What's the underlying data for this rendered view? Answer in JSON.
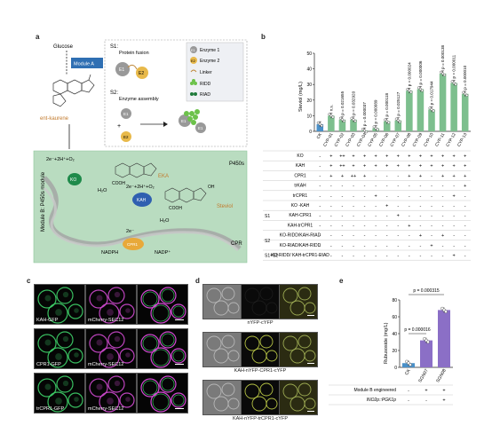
{
  "panel_a": {
    "label": "a",
    "glucose": "Glucose",
    "module_a": "Module A",
    "ent_kaurene": "ent-kaurene",
    "s1": "S1:",
    "protein_fusion": "Protein fusion",
    "s2": "S2:",
    "enzyme_assembly": "Enzyme assembly",
    "legend": [
      {
        "key": "E1",
        "text": "Enzyme 1"
      },
      {
        "key": "E2",
        "text": "Enzyme 2"
      },
      {
        "key": "",
        "text": "Linker"
      },
      {
        "key": "",
        "text": "RIDD"
      },
      {
        "key": "",
        "text": "RIAD"
      }
    ],
    "e1": "E1",
    "e2": "E2",
    "plus": "+",
    "module_b": "Module B: P450s module",
    "p450s": "P450s",
    "reaction1": "2e⁻+2H⁺+O₂",
    "reaction2": "2e⁻+2H⁺+O₂",
    "eka": "EKA",
    "steviol": "Steviol",
    "ko": "KO",
    "kah": "KAH",
    "cpr": "CPR",
    "h2o_1": "H₂O",
    "h2o_2": "H₂O",
    "electron": "2e⁻",
    "nadph": "NADPH",
    "nadp": "NADP⁺",
    "cpr1": "CPR1",
    "oh": "OH",
    "cooh1": "COOH",
    "cooh2": "COOH"
  },
  "panel_b": {
    "label": "b",
    "chart_data": {
      "type": "bar",
      "ylabel": "Steviol (mg/L)",
      "ylim": [
        0,
        50
      ],
      "yticks": [
        0,
        10,
        20,
        30,
        40,
        50
      ],
      "categories": [
        "CK",
        "CYP-01",
        "CYP-02",
        "CYP-03",
        "CYP-04",
        "CYP-05",
        "CYP-06",
        "CYP-07",
        "CYP-08",
        "CYP-09",
        "CYP-10",
        "CYP-11",
        "CYP-12",
        "CYP-13"
      ],
      "values": [
        4.5,
        10,
        7.5,
        7.5,
        0.5,
        2,
        6.5,
        7,
        26,
        27,
        14,
        37,
        31,
        24
      ],
      "annotations": [
        "",
        "n.s.",
        "p = 0.021655",
        "p = 0.032920",
        "p = 0.000037",
        "p = 0.000089",
        "p = 0.000118",
        "p = 0.025127",
        "p = 0.000024",
        "p = 0.000006",
        "p = 0.017944",
        "p = 0.000138",
        "p = 0.000011",
        "p = 0.000010"
      ],
      "colors": {
        "ck": "#4a90c8",
        "sample": "#7dbf8e"
      }
    },
    "table_rows": [
      {
        "group": "",
        "name": "KO",
        "cells": [
          "-",
          "+",
          "++",
          "+",
          "+",
          "+",
          "+",
          "+",
          "+",
          "+",
          "+",
          "+",
          "+",
          "+"
        ]
      },
      {
        "group": "",
        "name": "KAH",
        "cells": [
          "-",
          "+",
          "++",
          "+",
          "+",
          "+",
          "+",
          "+",
          "+",
          "+",
          "+",
          "+",
          "+",
          "+"
        ]
      },
      {
        "group": "",
        "name": "CPR1",
        "cells": [
          "-",
          "+",
          "+",
          "++",
          "+",
          "-",
          "-",
          "-",
          "+",
          "+",
          "-",
          "+",
          "+",
          "+"
        ]
      },
      {
        "group": "",
        "name": "trKAH",
        "cells": [
          "-",
          "-",
          "-",
          "-",
          "-",
          "-",
          "-",
          "-",
          "-",
          "-",
          "-",
          "-",
          "-",
          "+"
        ]
      },
      {
        "group": "",
        "name": "trCPR1",
        "cells": [
          "-",
          "-",
          "-",
          "-",
          "-",
          "+",
          "-",
          "-",
          "-",
          "-",
          "-",
          "-",
          "+",
          "-"
        ]
      },
      {
        "group": "S1",
        "name": "KO -KAH",
        "cells": [
          "-",
          "-",
          "-",
          "-",
          "-",
          "-",
          "+",
          "-",
          "-",
          "-",
          "-",
          "-",
          "-",
          "-"
        ]
      },
      {
        "group": "S1",
        "name": "KAH-CPR1",
        "cells": [
          "-",
          "-",
          "-",
          "-",
          "-",
          "-",
          "-",
          "+",
          "-",
          "-",
          "-",
          "-",
          "-",
          "-"
        ]
      },
      {
        "group": "S1",
        "name": "KAH-trCPR1",
        "cells": [
          "-",
          "-",
          "-",
          "-",
          "-",
          "-",
          "-",
          "-",
          "+",
          "-",
          "-",
          "-",
          "-",
          "-"
        ]
      },
      {
        "group": "S2",
        "name": "KO-RIDD/KAH-RIAD",
        "cells": [
          "-",
          "-",
          "-",
          "-",
          "-",
          "-",
          "-",
          "-",
          "-",
          "+",
          "-",
          "+",
          "-",
          "-"
        ]
      },
      {
        "group": "S2",
        "name": "KO-RIAD/KAH-RIDD",
        "cells": [
          "-",
          "-",
          "-",
          "-",
          "-",
          "-",
          "-",
          "-",
          "-",
          "-",
          "+",
          "-",
          "-",
          "-"
        ]
      },
      {
        "group": "S1+S2",
        "name": "KO-RIDD/ KAH-trCPR1-RIAD",
        "cells": [
          "-",
          "-",
          "-",
          "-",
          "-",
          "-",
          "-",
          "-",
          "-",
          "-",
          "-",
          "-",
          "+",
          "-"
        ]
      }
    ]
  },
  "panel_c": {
    "label": "c",
    "rows": [
      {
        "left": "KAH-GFP",
        "mid": "mCherry-SEC12"
      },
      {
        "left": "CPR1-GFP",
        "mid": "mCherry-SEC12"
      },
      {
        "left": "trCPR1-GFP",
        "mid": "mCherry-SEC12"
      }
    ]
  },
  "panel_d": {
    "label": "d",
    "captions": [
      "nYFP-cYFP",
      "KAH-nYFP-CPR1-cYFP",
      "KAH-nYFP-trCPR1-cYFP"
    ]
  },
  "panel_e": {
    "label": "e",
    "chart_data": {
      "type": "bar",
      "ylabel": "Rubusoside (mg/L)",
      "ylim": [
        0,
        80
      ],
      "yticks": [
        0,
        20,
        40,
        60,
        80
      ],
      "categories": [
        "CK",
        "SGN07",
        "SGN08"
      ],
      "values": [
        5,
        32,
        68
      ],
      "annotations": [
        "p = 0.000016",
        "p = 0.000315"
      ],
      "colors": {
        "ck": "#4a90c8",
        "sample": "#8b6fc6"
      }
    },
    "table_rows": [
      {
        "name": "Module B engineered",
        "cells": [
          "-",
          "+",
          "+"
        ]
      },
      {
        "name": "INO2p::PGK1p",
        "cells": [
          "-",
          "-",
          "+"
        ]
      }
    ]
  }
}
